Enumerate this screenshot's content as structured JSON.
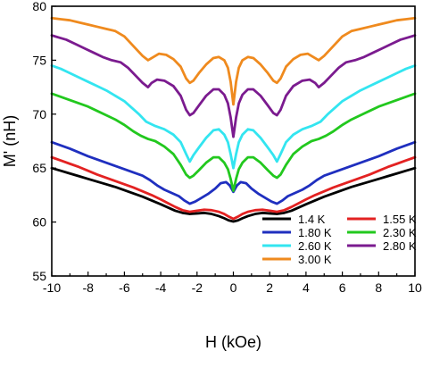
{
  "chart_data": {
    "type": "line",
    "xlabel": "H (kOe)",
    "ylabel": "M' (nH)",
    "xlim": [
      -10,
      10
    ],
    "ylim": [
      55,
      80
    ],
    "xticks": [
      -10,
      -8,
      -6,
      -4,
      -2,
      0,
      2,
      4,
      6,
      8,
      10
    ],
    "yticks": [
      55,
      60,
      65,
      70,
      75,
      80
    ],
    "legend_position": "bottom-right",
    "legend_columns": 2,
    "grid": false,
    "series": [
      {
        "name": "1.4 K",
        "color": "#000000",
        "x": [
          0,
          0.25,
          0.5,
          0.8,
          1.2,
          1.6,
          2.0,
          2.4,
          2.8,
          3.2,
          3.6,
          4.0,
          4.5,
          5.0,
          5.5,
          6.0,
          6.5,
          7.0,
          7.5,
          8.0,
          8.5,
          9.0,
          9.5,
          10.0
        ],
        "y": [
          60.05,
          60.15,
          60.35,
          60.55,
          60.75,
          60.85,
          60.8,
          60.75,
          60.85,
          61.05,
          61.35,
          61.65,
          62.0,
          62.35,
          62.65,
          62.95,
          63.25,
          63.5,
          63.75,
          64.0,
          64.25,
          64.5,
          64.75,
          65.0
        ]
      },
      {
        "name": "1.55 K",
        "color": "#e32222",
        "x": [
          0,
          0.25,
          0.5,
          0.8,
          1.2,
          1.6,
          2.0,
          2.4,
          2.8,
          3.2,
          3.6,
          4.0,
          4.5,
          5.0,
          5.5,
          6.0,
          6.5,
          7.0,
          7.5,
          8.0,
          8.5,
          9.0,
          9.5,
          10.0
        ],
        "y": [
          60.3,
          60.5,
          60.75,
          60.95,
          61.1,
          61.15,
          61.05,
          60.95,
          61.1,
          61.4,
          61.75,
          62.1,
          62.5,
          62.85,
          63.2,
          63.5,
          63.8,
          64.1,
          64.4,
          64.75,
          65.1,
          65.4,
          65.7,
          66.0
        ]
      },
      {
        "name": "1.80 K",
        "color": "#1f2fbf",
        "x": [
          0,
          0.2,
          0.4,
          0.7,
          1.0,
          1.4,
          1.8,
          2.1,
          2.4,
          2.7,
          3.0,
          3.4,
          3.8,
          4.2,
          4.6,
          5.0,
          5.5,
          6.0,
          6.5,
          7.0,
          7.5,
          8.0,
          8.5,
          9.0,
          9.5,
          10.0
        ],
        "y": [
          62.8,
          63.4,
          63.7,
          63.6,
          63.1,
          62.6,
          62.2,
          61.9,
          61.7,
          62.0,
          62.4,
          62.7,
          63.0,
          63.4,
          63.9,
          64.3,
          64.6,
          64.9,
          65.2,
          65.5,
          65.8,
          66.1,
          66.45,
          66.8,
          67.1,
          67.4
        ]
      },
      {
        "name": "2.60 K",
        "color": "#33e5f0",
        "x": [
          0,
          0.15,
          0.3,
          0.5,
          0.8,
          1.1,
          1.5,
          1.9,
          2.2,
          2.4,
          2.6,
          2.9,
          3.3,
          3.8,
          4.3,
          4.8,
          5.2,
          5.6,
          6.0,
          6.5,
          7.0,
          7.5,
          8.0,
          8.5,
          9.0,
          9.5,
          10.0
        ],
        "y": [
          65.0,
          66.3,
          67.4,
          68.1,
          68.6,
          68.5,
          67.8,
          66.9,
          66.2,
          65.6,
          66.3,
          67.4,
          68.1,
          68.6,
          68.9,
          69.3,
          70.0,
          70.6,
          71.2,
          71.7,
          72.2,
          72.6,
          73.0,
          73.4,
          73.8,
          74.2,
          74.5
        ]
      },
      {
        "name": "2.30 K",
        "color": "#22c81e",
        "x": [
          0,
          0.15,
          0.3,
          0.5,
          0.8,
          1.1,
          1.5,
          1.9,
          2.2,
          2.4,
          2.6,
          2.9,
          3.3,
          3.8,
          4.3,
          4.7,
          5.1,
          5.5,
          6.0,
          6.5,
          7.0,
          7.5,
          8.0,
          8.5,
          9.0,
          9.5,
          10.0
        ],
        "y": [
          62.9,
          64.0,
          64.9,
          65.5,
          66.0,
          66.0,
          65.5,
          64.8,
          64.3,
          64.1,
          64.4,
          65.3,
          66.3,
          67.0,
          67.5,
          67.7,
          68.0,
          68.4,
          69.0,
          69.5,
          69.9,
          70.3,
          70.7,
          71.0,
          71.3,
          71.6,
          71.9
        ]
      },
      {
        "name": "2.80 K",
        "color": "#7b1b8f",
        "x": [
          0,
          0.15,
          0.3,
          0.5,
          0.8,
          1.1,
          1.5,
          1.9,
          2.2,
          2.4,
          2.6,
          2.9,
          3.3,
          3.8,
          4.2,
          4.5,
          4.7,
          5.0,
          5.4,
          5.8,
          6.2,
          6.7,
          7.2,
          7.7,
          8.2,
          8.7,
          9.2,
          9.6,
          10.0
        ],
        "y": [
          67.9,
          69.7,
          71.0,
          71.8,
          72.3,
          72.3,
          71.7,
          70.8,
          70.1,
          69.9,
          70.4,
          71.7,
          72.6,
          73.1,
          73.2,
          72.9,
          72.5,
          72.9,
          73.6,
          74.3,
          74.8,
          75.0,
          75.3,
          75.7,
          76.1,
          76.5,
          76.9,
          77.1,
          77.3
        ]
      },
      {
        "name": "3.00 K",
        "color": "#ef8a1e",
        "x": [
          0,
          0.15,
          0.3,
          0.5,
          0.8,
          1.1,
          1.5,
          1.9,
          2.2,
          2.4,
          2.6,
          2.9,
          3.3,
          3.7,
          4.1,
          4.4,
          4.7,
          5.0,
          5.5,
          6.0,
          6.5,
          7.0,
          7.5,
          8.0,
          8.5,
          9.0,
          9.5,
          10.0
        ],
        "y": [
          70.9,
          73.0,
          74.3,
          75.0,
          75.3,
          75.2,
          74.6,
          73.8,
          73.1,
          72.9,
          73.3,
          74.4,
          75.1,
          75.5,
          75.6,
          75.3,
          75.0,
          75.4,
          76.3,
          77.2,
          77.7,
          77.9,
          78.1,
          78.3,
          78.5,
          78.7,
          78.8,
          78.9
        ]
      }
    ],
    "legend_order": [
      "1.4 K",
      "1.55 K",
      "1.80 K",
      "2.30 K",
      "2.60 K",
      "2.80 K",
      "3.00 K"
    ]
  }
}
